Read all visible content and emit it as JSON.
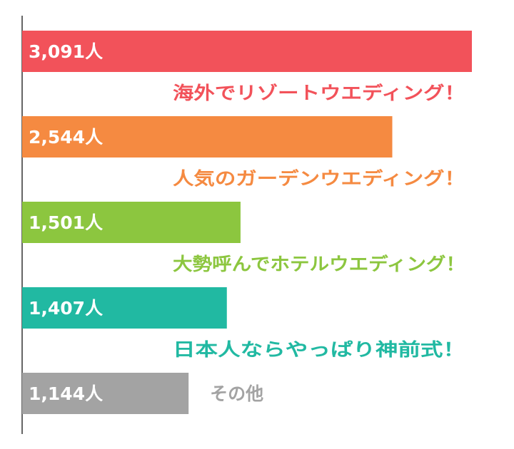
{
  "chart_data": {
    "type": "bar",
    "orientation": "horizontal",
    "categories": [
      "海外でリゾートウエディング！",
      "人気のガーデンウエディング！",
      "大勢呼んでホテルウエディング！",
      "日本人ならやっぱり神前式！",
      "その他"
    ],
    "values": [
      3091,
      2544,
      1501,
      1407,
      1144
    ],
    "value_labels": [
      "3,091人",
      "2,544人",
      "1,501人",
      "1,407人",
      "1,144人"
    ],
    "colors": [
      "#f2525a",
      "#f58a41",
      "#8cc63f",
      "#21b9a2",
      "#a3a3a3"
    ],
    "xlim": [
      0,
      3091
    ],
    "grid": false,
    "legend": "none"
  }
}
